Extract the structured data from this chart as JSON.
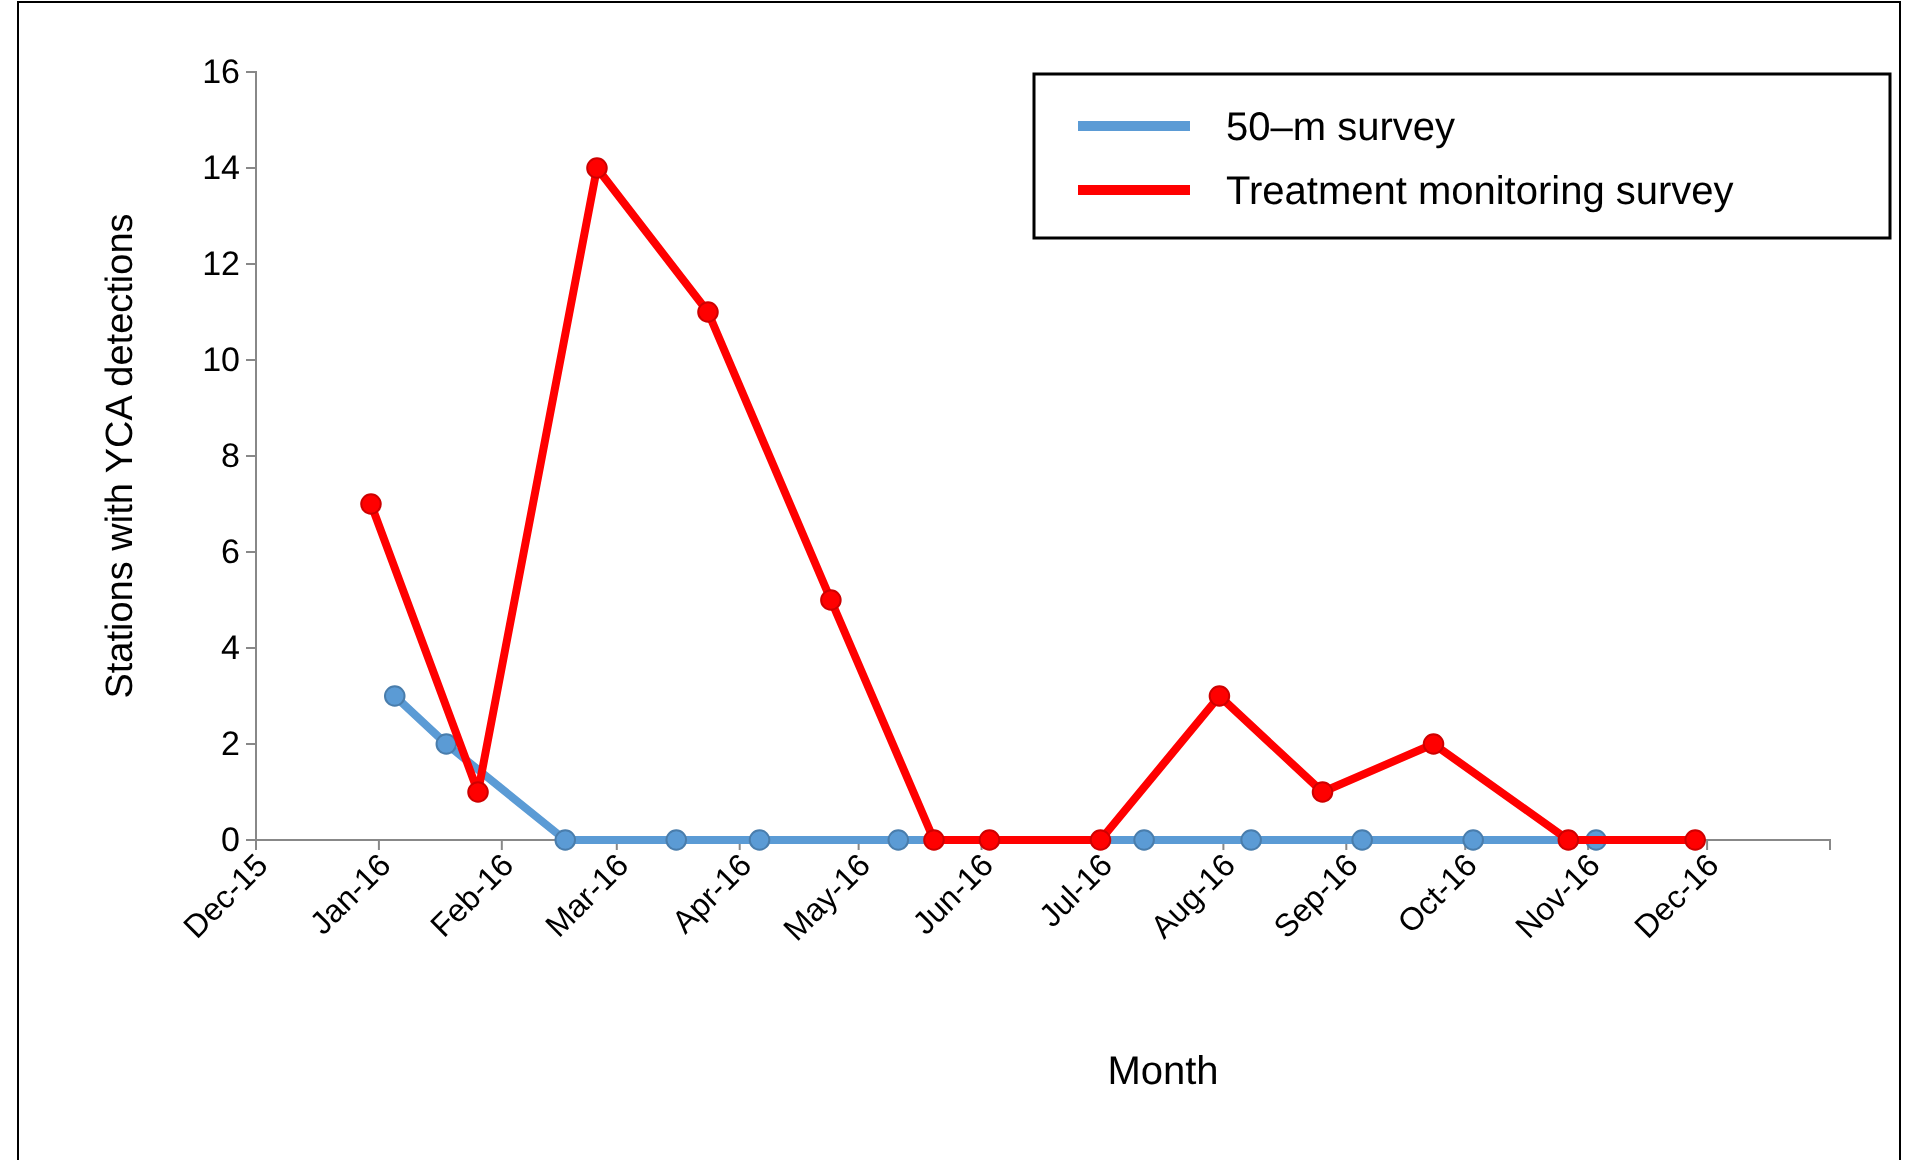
{
  "chart_data": {
    "type": "line",
    "xlabel": "Month",
    "ylabel": "Stations with YCA detections",
    "xlim": [
      "2015-12-01",
      "2017-01-01"
    ],
    "xticks": [
      {
        "value": "2015-12-01",
        "label": "Dec-15"
      },
      {
        "value": "2016-01-01",
        "label": "Jan-16"
      },
      {
        "value": "2016-02-01",
        "label": "Feb-16"
      },
      {
        "value": "2016-03-01",
        "label": "Mar-16"
      },
      {
        "value": "2016-04-01",
        "label": "Apr-16"
      },
      {
        "value": "2016-05-01",
        "label": "May-16"
      },
      {
        "value": "2016-06-01",
        "label": "Jun-16"
      },
      {
        "value": "2016-07-01",
        "label": "Jul-16"
      },
      {
        "value": "2016-08-01",
        "label": "Aug-16"
      },
      {
        "value": "2016-09-01",
        "label": "Sep-16"
      },
      {
        "value": "2016-10-01",
        "label": "Oct-16"
      },
      {
        "value": "2016-11-01",
        "label": "Nov-16"
      },
      {
        "value": "2016-12-01",
        "label": "Dec-16"
      },
      {
        "value": "2017-01-01",
        "label": null
      }
    ],
    "ylim": [
      0,
      16
    ],
    "yticks": [
      0,
      2,
      4,
      6,
      8,
      10,
      12,
      14,
      16
    ],
    "grid": false,
    "legend": "top right",
    "marker": "circle",
    "line_style": "solid",
    "series": [
      {
        "name": "50–m survey",
        "color": "#5b9bd5",
        "x": [
          "2016-01-05",
          "2016-01-18",
          "2016-02-17",
          "2016-03-16",
          "2016-04-06",
          "2016-05-11",
          "2016-07-12",
          "2016-08-08",
          "2016-09-05",
          "2016-10-03",
          "2016-11-03"
        ],
        "values": [
          3,
          2,
          0,
          0,
          0,
          0,
          0,
          0,
          0,
          0,
          0
        ]
      },
      {
        "name": "Treatment monitoring survey",
        "color": "#ff0000",
        "x": [
          "2015-12-30",
          "2016-01-26",
          "2016-02-25",
          "2016-03-24",
          "2016-04-24",
          "2016-05-20",
          "2016-06-03",
          "2016-07-01",
          "2016-07-31",
          "2016-08-26",
          "2016-09-23",
          "2016-10-27",
          "2016-11-28"
        ],
        "values": [
          7,
          1,
          14,
          11,
          5,
          0,
          0,
          0,
          3,
          1,
          2,
          0,
          0
        ]
      }
    ]
  }
}
